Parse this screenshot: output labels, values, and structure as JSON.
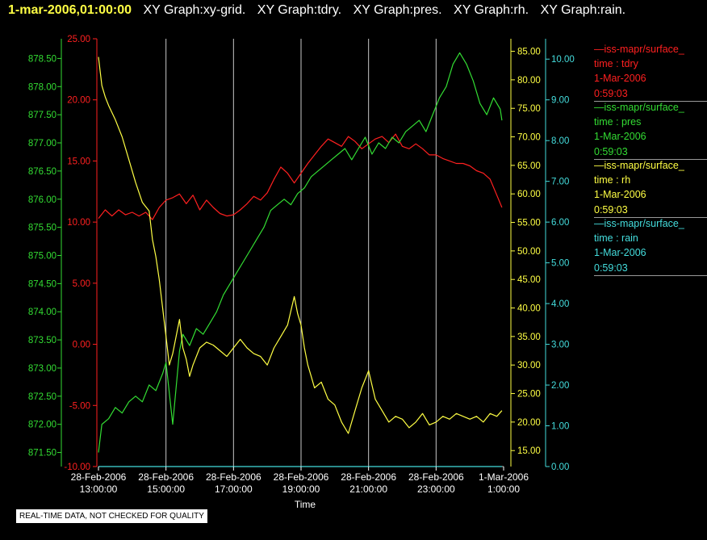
{
  "header": {
    "timestamp": "1-mar-2006,01:00:00",
    "graphs": [
      "XY Graph:xy-grid.",
      "XY Graph:tdry.",
      "XY Graph:pres.",
      "XY Graph:rh.",
      "XY Graph:rain."
    ]
  },
  "legend": [
    {
      "name": "—iss-mapr/surface_",
      "var": "time : tdry",
      "date": "1-Mar-2006",
      "time": "0:59:03",
      "color": "#ff2020"
    },
    {
      "name": "—iss-mapr/surface_",
      "var": "time : pres",
      "date": "1-Mar-2006",
      "time": "0:59:03",
      "color": "#33dd33"
    },
    {
      "name": "—iss-mapr/surface_",
      "var": "time : rh",
      "date": "1-Mar-2006",
      "time": "0:59:03",
      "color": "#ffff44"
    },
    {
      "name": "—iss-mapr/surface_",
      "var": "time : rain",
      "date": "1-Mar-2006",
      "time": "0:59:03",
      "color": "#44dddd"
    }
  ],
  "note": "REAL-TIME DATA, NOT CHECKED FOR QUALITY",
  "chart_data": {
    "type": "line",
    "xlabel": "Time",
    "xlim": [
      13,
      25.0
    ],
    "x_ticks": [
      {
        "x": 13,
        "date": "28-Feb-2006",
        "time": "13:00:00"
      },
      {
        "x": 15,
        "date": "28-Feb-2006",
        "time": "15:00:00"
      },
      {
        "x": 17,
        "date": "28-Feb-2006",
        "time": "17:00:00"
      },
      {
        "x": 19,
        "date": "28-Feb-2006",
        "time": "19:00:00"
      },
      {
        "x": 21,
        "date": "28-Feb-2006",
        "time": "21:00:00"
      },
      {
        "x": 23,
        "date": "28-Feb-2006",
        "time": "23:00:00"
      },
      {
        "x": 25,
        "date": "1-Mar-2006",
        "time": "1:00:00"
      }
    ],
    "grid": "vertical",
    "axes": {
      "tdry": {
        "ylim": [
          -10,
          25
        ],
        "ticks": [
          "25.00",
          "20.00",
          "15.00",
          "10.00",
          "5.00",
          "0.00",
          "-5.00",
          "-10.00"
        ],
        "color": "#ff2020"
      },
      "pres": {
        "ylim": [
          871.25,
          878.85
        ],
        "ticks": [
          "878.50",
          "878.00",
          "877.50",
          "877.00",
          "876.50",
          "876.00",
          "875.50",
          "875.00",
          "874.50",
          "874.00",
          "873.50",
          "873.00",
          "872.50",
          "872.00",
          "871.50"
        ],
        "color": "#33dd33"
      },
      "rh": {
        "ylim": [
          12.2,
          87.2
        ],
        "ticks": [
          "85.00",
          "80.00",
          "75.00",
          "70.00",
          "65.00",
          "60.00",
          "55.00",
          "50.00",
          "45.00",
          "40.00",
          "35.00",
          "30.00",
          "25.00",
          "20.00",
          "15.00"
        ],
        "color": "#ffff44"
      },
      "rain": {
        "ylim": [
          0,
          10.5
        ],
        "ticks": [
          "10.00",
          "9.00",
          "8.00",
          "7.00",
          "6.00",
          "5.00",
          "4.00",
          "3.00",
          "2.00",
          "1.00",
          "0.00"
        ],
        "color": "#44dddd"
      }
    },
    "series": [
      {
        "axis": "tdry",
        "color": "#ff2020",
        "x": [
          13.0,
          13.2,
          13.4,
          13.6,
          13.8,
          14.0,
          14.2,
          14.4,
          14.6,
          14.8,
          15.0,
          15.2,
          15.4,
          15.6,
          15.8,
          16.0,
          16.2,
          16.4,
          16.6,
          16.8,
          17.0,
          17.2,
          17.4,
          17.6,
          17.8,
          18.0,
          18.2,
          18.4,
          18.6,
          18.8,
          19.0,
          19.2,
          19.4,
          19.6,
          19.8,
          20.0,
          20.2,
          20.4,
          20.6,
          20.8,
          21.0,
          21.2,
          21.4,
          21.6,
          21.8,
          22.0,
          22.2,
          22.4,
          22.6,
          22.8,
          23.0,
          23.2,
          23.4,
          23.6,
          23.8,
          24.0,
          24.2,
          24.4,
          24.6,
          24.8,
          24.95
        ],
        "y": [
          10.3,
          11.0,
          10.5,
          11.0,
          10.6,
          10.8,
          10.5,
          10.8,
          10.2,
          11.2,
          11.8,
          12.0,
          12.3,
          11.5,
          12.2,
          11.0,
          11.8,
          11.2,
          10.7,
          10.5,
          10.6,
          11.0,
          11.5,
          12.1,
          11.8,
          12.4,
          13.5,
          14.5,
          14.0,
          13.2,
          14.0,
          14.8,
          15.5,
          16.2,
          16.8,
          16.5,
          16.2,
          17.0,
          16.6,
          16.0,
          16.4,
          16.8,
          17.0,
          16.5,
          17.2,
          16.2,
          16.0,
          16.4,
          16.0,
          15.5,
          15.5,
          15.2,
          15.0,
          14.8,
          14.8,
          14.6,
          14.2,
          14.0,
          13.5,
          12.2,
          11.2
        ]
      },
      {
        "axis": "pres",
        "color": "#33dd33",
        "x": [
          13.0,
          13.1,
          13.3,
          13.5,
          13.7,
          13.9,
          14.1,
          14.3,
          14.5,
          14.7,
          14.9,
          15.0,
          15.2,
          15.4,
          15.5,
          15.7,
          15.9,
          16.1,
          16.3,
          16.5,
          16.7,
          16.9,
          17.1,
          17.3,
          17.5,
          17.7,
          17.9,
          18.1,
          18.3,
          18.5,
          18.7,
          18.9,
          19.1,
          19.3,
          19.5,
          19.7,
          19.9,
          20.1,
          20.3,
          20.5,
          20.7,
          20.9,
          21.1,
          21.3,
          21.5,
          21.7,
          21.9,
          22.1,
          22.3,
          22.5,
          22.7,
          22.9,
          23.1,
          23.3,
          23.5,
          23.7,
          23.9,
          24.1,
          24.3,
          24.5,
          24.7,
          24.9,
          24.95
        ],
        "y": [
          871.5,
          872.0,
          872.1,
          872.3,
          872.2,
          872.4,
          872.5,
          872.4,
          872.7,
          872.6,
          872.9,
          873.1,
          872.0,
          873.3,
          873.6,
          873.4,
          873.7,
          873.6,
          873.8,
          874.0,
          874.3,
          874.5,
          874.7,
          874.9,
          875.1,
          875.3,
          875.5,
          875.8,
          875.9,
          876.0,
          875.9,
          876.1,
          876.2,
          876.4,
          876.5,
          876.6,
          876.7,
          876.8,
          876.9,
          876.7,
          876.9,
          877.1,
          876.8,
          877.0,
          876.9,
          877.1,
          877.0,
          877.2,
          877.3,
          877.4,
          877.2,
          877.5,
          877.8,
          878.0,
          878.4,
          878.6,
          878.4,
          878.1,
          877.7,
          877.5,
          877.8,
          877.6,
          877.4
        ]
      },
      {
        "axis": "rh",
        "color": "#ffff44",
        "x": [
          13.0,
          13.1,
          13.2,
          13.3,
          13.5,
          13.7,
          13.9,
          14.1,
          14.3,
          14.5,
          14.6,
          14.7,
          14.8,
          14.9,
          15.0,
          15.1,
          15.2,
          15.3,
          15.4,
          15.5,
          15.6,
          15.7,
          15.8,
          16.0,
          16.2,
          16.4,
          16.6,
          16.8,
          17.0,
          17.2,
          17.4,
          17.6,
          17.8,
          18.0,
          18.2,
          18.4,
          18.6,
          18.8,
          18.9,
          19.0,
          19.1,
          19.2,
          19.3,
          19.4,
          19.6,
          19.8,
          20.0,
          20.2,
          20.4,
          20.6,
          20.8,
          21.0,
          21.2,
          21.4,
          21.6,
          21.8,
          22.0,
          22.2,
          22.4,
          22.6,
          22.8,
          23.0,
          23.2,
          23.4,
          23.6,
          23.8,
          24.0,
          24.2,
          24.4,
          24.6,
          24.8,
          24.95
        ],
        "y": [
          84.0,
          79.0,
          77.0,
          75.5,
          73.0,
          70.0,
          66.0,
          62.0,
          58.5,
          57.0,
          52.0,
          49.0,
          45.0,
          40.0,
          35.0,
          30.0,
          32.0,
          35.0,
          38.0,
          33.0,
          31.0,
          28.0,
          30.0,
          33.0,
          34.0,
          33.5,
          32.5,
          31.5,
          33.0,
          34.5,
          33.0,
          32.0,
          31.5,
          30.0,
          33.0,
          35.0,
          37.0,
          42.0,
          39.0,
          37.0,
          33.0,
          30.0,
          28.0,
          26.0,
          27.0,
          24.0,
          23.0,
          20.0,
          18.0,
          22.0,
          26.0,
          29.0,
          24.0,
          22.0,
          20.0,
          21.0,
          20.5,
          19.0,
          20.0,
          21.5,
          19.5,
          20.0,
          21.0,
          20.5,
          21.5,
          21.0,
          20.5,
          21.0,
          20.0,
          21.5,
          21.0,
          22.0
        ]
      },
      {
        "axis": "rain",
        "color": "#44dddd",
        "x": [
          13.0,
          24.95
        ],
        "y": [
          0.0,
          0.0
        ]
      }
    ]
  }
}
